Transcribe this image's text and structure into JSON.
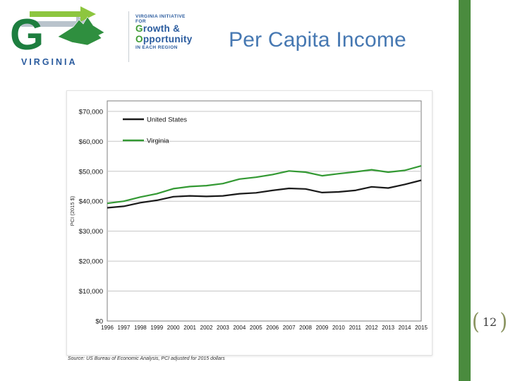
{
  "slide": {
    "title": "Per Capita Income",
    "page_number": "12",
    "bracket_left": "(",
    "bracket_right": ")",
    "source_note": "Source: US Bureau of Economic Analysis, PCI adjusted for 2015 dollars",
    "accent_color": "#4a8b3e",
    "title_color": "#4678b2"
  },
  "logo": {
    "g_letter": "G",
    "state_label": "VIRGINIA",
    "tagline_top": "VIRGINIA INITIATIVE FOR",
    "growth": "Growth &",
    "opportunity": "Opportunity",
    "tagline_bottom": "IN EACH REGION"
  },
  "chart_data": {
    "type": "line",
    "x": [
      1996,
      1997,
      1998,
      1999,
      2000,
      2001,
      2002,
      2003,
      2004,
      2005,
      2006,
      2007,
      2008,
      2009,
      2010,
      2011,
      2012,
      2013,
      2014,
      2015
    ],
    "series": [
      {
        "name": "United States",
        "color": "#1a1a1a",
        "values": [
          37800,
          38300,
          39500,
          40300,
          41500,
          41800,
          41600,
          41800,
          42500,
          42800,
          43600,
          44300,
          44100,
          42900,
          43100,
          43600,
          44800,
          44400,
          45600,
          47000
        ]
      },
      {
        "name": "Virginia",
        "color": "#339933",
        "values": [
          39300,
          40000,
          41400,
          42500,
          44200,
          44900,
          45200,
          45900,
          47400,
          48000,
          48900,
          50100,
          49700,
          48500,
          49200,
          49800,
          50500,
          49700,
          50300,
          51800
        ]
      }
    ],
    "ylabel": "PCI (2015 $)",
    "ylim": [
      0,
      70000
    ],
    "ytick_step": 10000,
    "yticks": [
      {
        "value": 0,
        "label": "$0"
      },
      {
        "value": 10000,
        "label": "$10,000"
      },
      {
        "value": 20000,
        "label": "$20,000"
      },
      {
        "value": 30000,
        "label": "$30,000"
      },
      {
        "value": 40000,
        "label": "$40,000"
      },
      {
        "value": 50000,
        "label": "$50,000"
      },
      {
        "value": 60000,
        "label": "$60,000"
      },
      {
        "value": 70000,
        "label": "$70,000"
      }
    ],
    "grid": true,
    "legend_position": "top-left"
  }
}
